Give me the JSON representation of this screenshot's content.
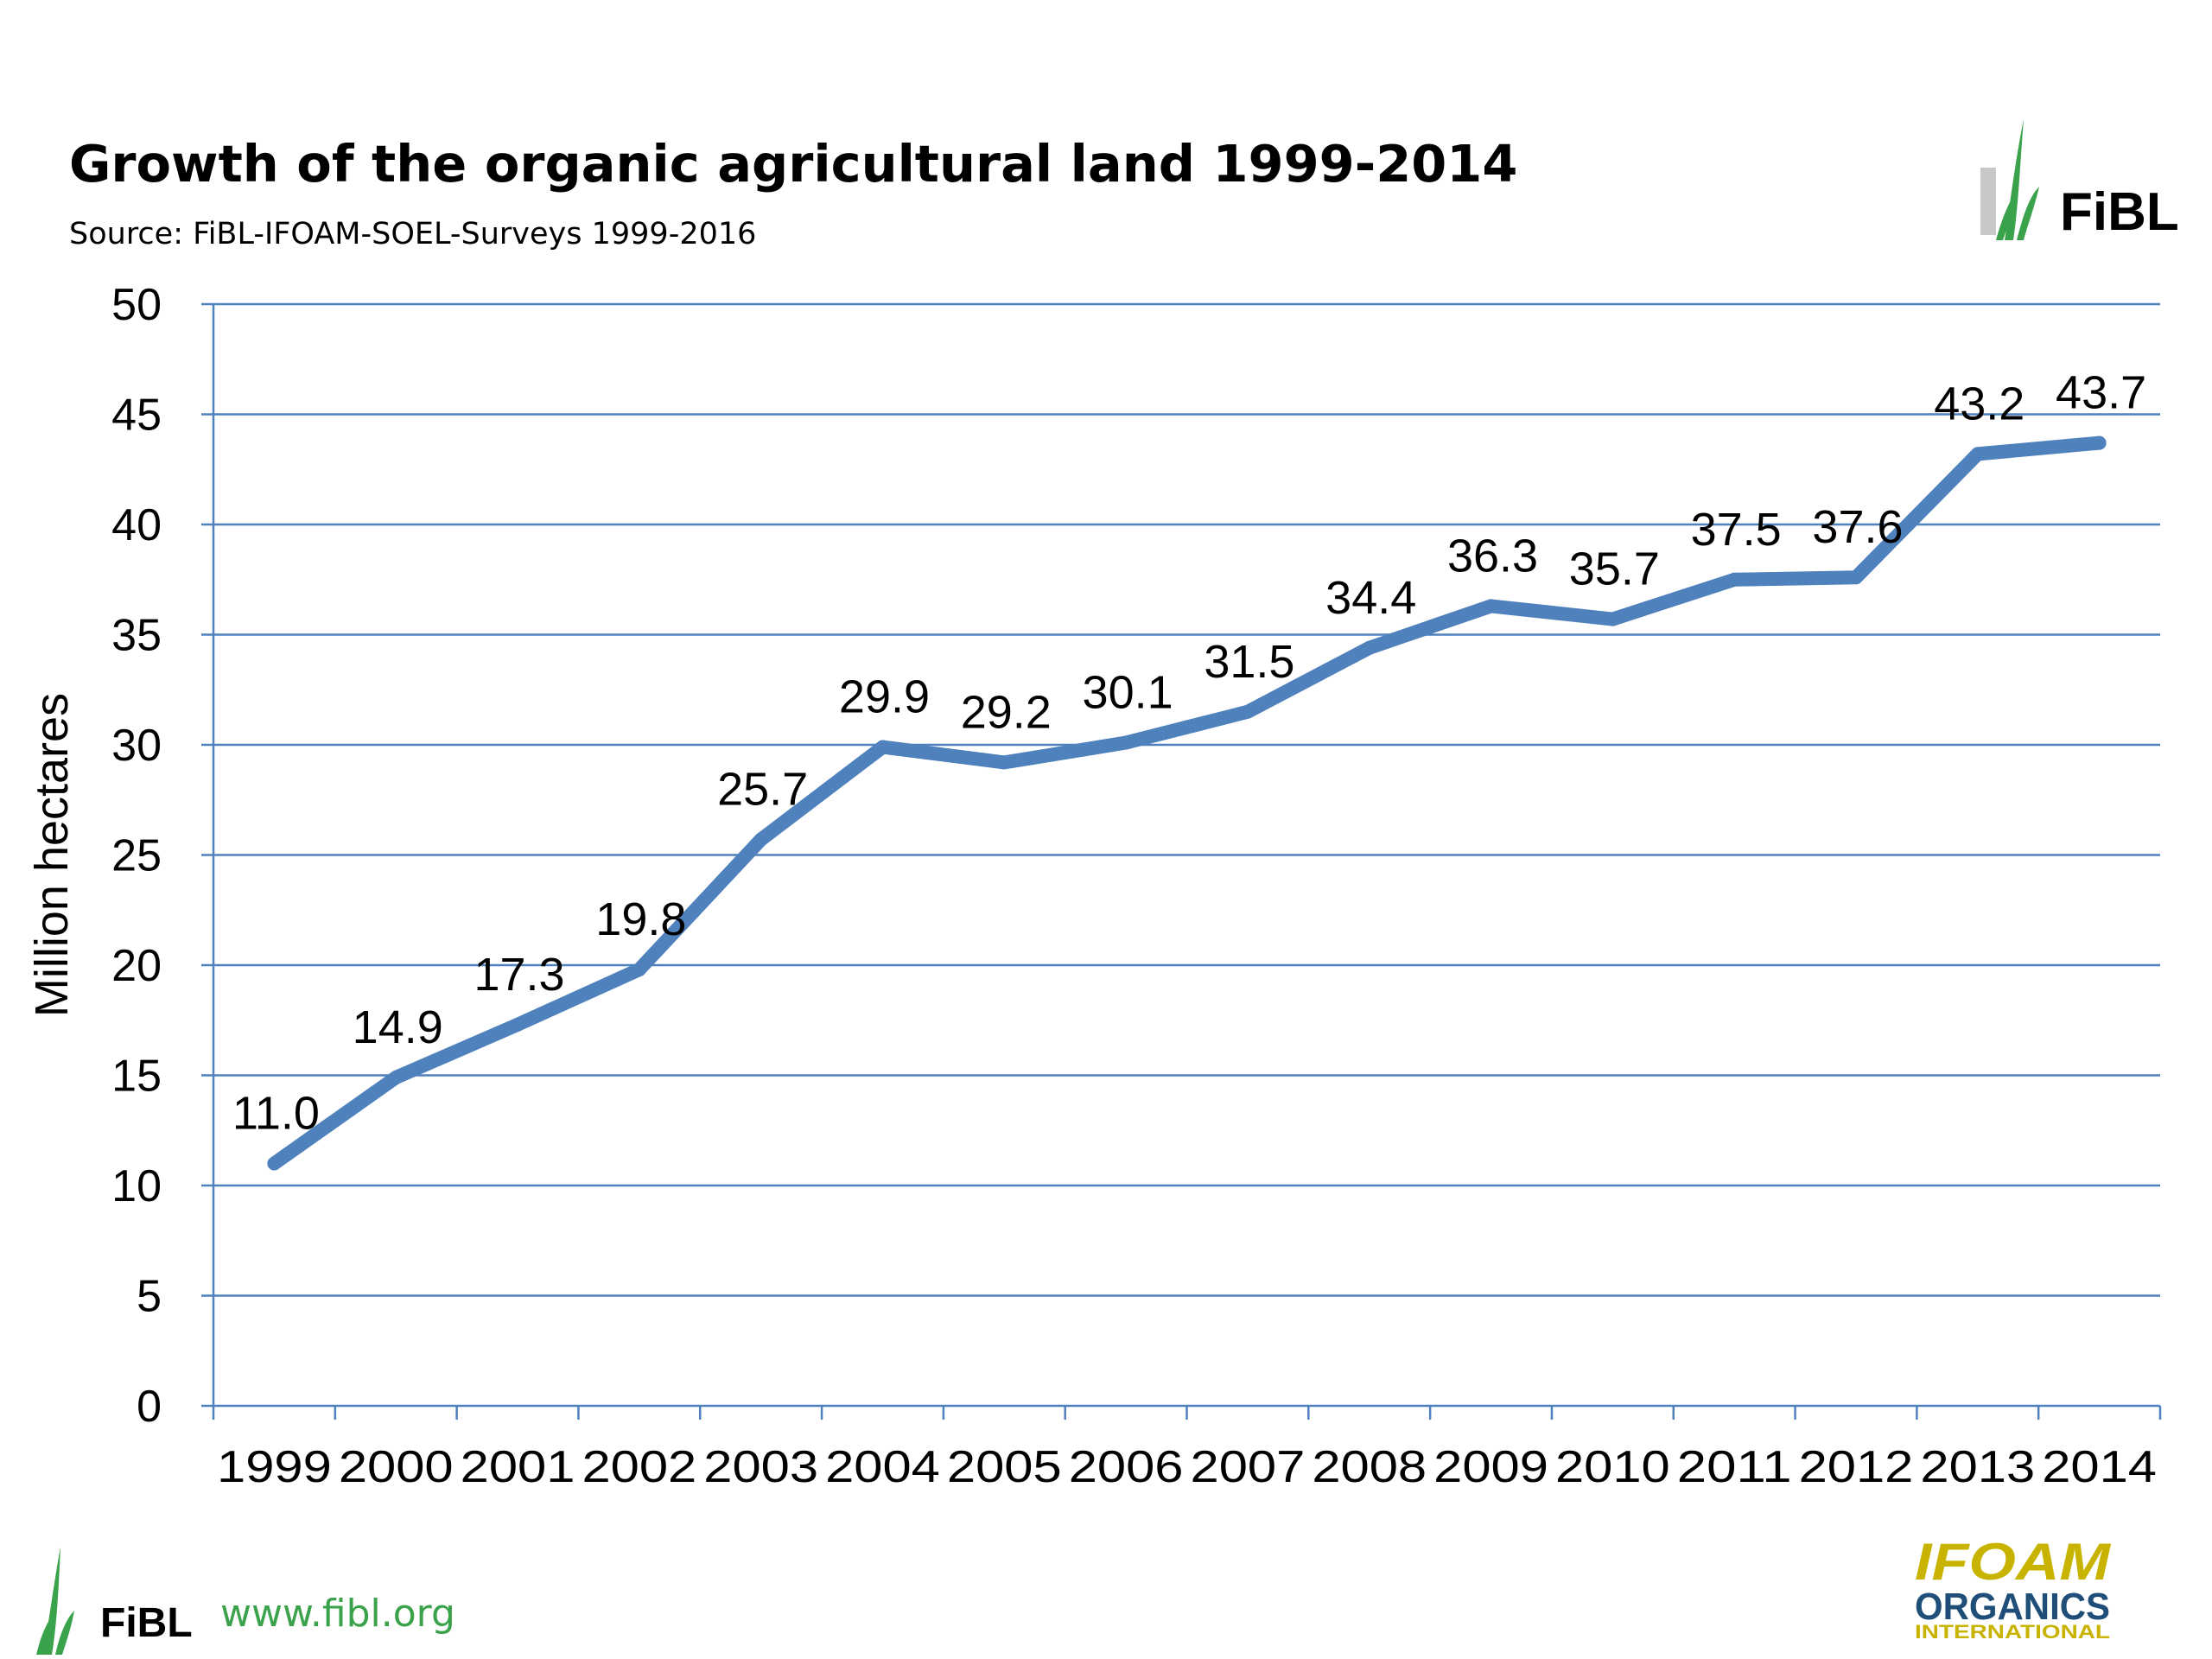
{
  "header": {
    "title": "Growth of the organic agricultural land 1999-2014",
    "subtitle": "Source: FiBL-IFOAM-SOEL-Surveys 1999-2016"
  },
  "logos": {
    "top_brand": "FiBL",
    "bottom_brand": "FiBL",
    "footer_url": "www.fibl.org",
    "ifoam_line1": "IFOAM",
    "ifoam_line2": "ORGANICS",
    "ifoam_line3": "INTERNATIONAL"
  },
  "colors": {
    "line": "#4f81bd",
    "grid": "#4f81bd",
    "fibl_green": "#3aa24a",
    "ifoam_yellow": "#c8b400",
    "ifoam_blue": "#1f4e79"
  },
  "chart_data": {
    "type": "line",
    "title": "Growth of the organic agricultural land 1999-2014",
    "subtitle": "Source: FiBL-IFOAM-SOEL-Surveys 1999-2016",
    "xlabel": "",
    "ylabel": "Million hectares",
    "categories": [
      "1999",
      "2000",
      "2001",
      "2002",
      "2003",
      "2004",
      "2005",
      "2006",
      "2007",
      "2008",
      "2009",
      "2010",
      "2011",
      "2012",
      "2013",
      "2014"
    ],
    "values": [
      11.0,
      14.9,
      17.3,
      19.8,
      25.7,
      29.9,
      29.2,
      30.1,
      31.5,
      34.4,
      36.3,
      35.7,
      37.5,
      37.6,
      43.2,
      43.7
    ],
    "data_labels": [
      "11.0",
      "14.9",
      "17.3",
      "19.8",
      "25.7",
      "29.9",
      "29.2",
      "30.1",
      "31.5",
      "34.4",
      "36.3",
      "35.7",
      "37.5",
      "37.6",
      "43.2",
      "43.7"
    ],
    "ylim": [
      0,
      50
    ],
    "yticks": [
      0,
      5,
      10,
      15,
      20,
      25,
      30,
      35,
      40,
      45,
      50
    ],
    "grid": true,
    "legend": "none"
  }
}
